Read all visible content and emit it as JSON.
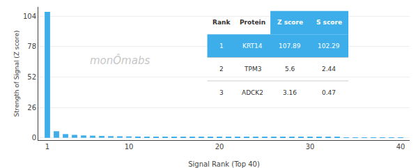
{
  "chart_data": {
    "type": "bar",
    "x": [
      1,
      2,
      3,
      4,
      5,
      6,
      7,
      8,
      9,
      10,
      11,
      12,
      13,
      14,
      15,
      16,
      17,
      18,
      19,
      20,
      21,
      22,
      23,
      24,
      25,
      26,
      27,
      28,
      29,
      30,
      31,
      32,
      33,
      34,
      35,
      36,
      37,
      38,
      39,
      40
    ],
    "values": [
      107.89,
      5.6,
      3.16,
      2.5,
      2.0,
      1.8,
      1.6,
      1.4,
      1.3,
      1.2,
      1.1,
      1.0,
      0.95,
      0.9,
      0.85,
      0.8,
      0.75,
      0.7,
      0.68,
      0.66,
      0.64,
      0.62,
      0.6,
      0.58,
      0.56,
      0.54,
      0.52,
      0.5,
      0.48,
      0.46,
      0.44,
      0.42,
      0.4,
      0.38,
      0.36,
      0.34,
      0.32,
      0.3,
      0.28,
      0.26
    ],
    "color": "#3daee9",
    "xlabel": "Signal Rank (Top 40)",
    "ylabel": "Strength of Signal (Z score)",
    "xlim": [
      0,
      41
    ],
    "xticks": [
      1,
      10,
      20,
      30,
      40
    ],
    "ylim": [
      -2,
      112
    ],
    "yticks": [
      0,
      26,
      52,
      78,
      104
    ],
    "grid": true,
    "annotations": [
      "monÔmabs"
    ],
    "table": [
      [
        "Rank",
        "Protein",
        "Z score",
        "S score"
      ],
      [
        "1",
        "KRT14",
        "107.89",
        "102.29"
      ],
      [
        "2",
        "TPM3",
        "5.6",
        "2.44"
      ],
      [
        "3",
        "ADCK2",
        "3.16",
        "0.47"
      ]
    ]
  }
}
